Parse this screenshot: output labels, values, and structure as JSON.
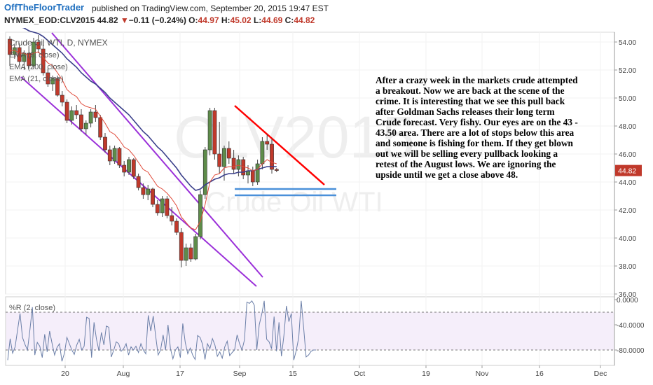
{
  "header": {
    "brand": "OffTheFloorTrader",
    "published": "published on TradingView.com, September 20, 2015 19:47 EST"
  },
  "quote": {
    "symbol": "NYMEX_EOD:CLV2015",
    "last": "44.82",
    "arrow": "▼",
    "change": "−0.11 (−0.24%)",
    "o_label": "O:",
    "o_val": "44.97",
    "h_label": "H:",
    "h_val": "45.02",
    "l_label": "L:",
    "l_val": "44.69",
    "c_label": "C:",
    "c_val": "44.82"
  },
  "watermark": {
    "symbol": "CLV2015",
    "name": "Crude Oil WTI"
  },
  "legend": {
    "title": "Crude Oil WTI, D, NYMEX",
    "ema8": "EMA (8, close)",
    "ema200": "EMA (200, close)",
    "ema21": "EMA (21, close)"
  },
  "annotation": "After  a crazy week in the markets crude attempted a breakout.  Now we are back at the scene of the crime.  It is interesting that we see this pull back after Goldman Sachs releases their long term Crude forecast.  Very fishy.  Our eyes are on the 43 - 43.50 area.  There are a lot of stops below this area and someone is fishing for them.  If they get blown out we will be selling every pullback looking a retest of the August lows.  We are ignoring the upside until we get a close above 48.",
  "colors": {
    "up": "#5e8c4a",
    "down": "#c0392b",
    "ema8": "#e04a3a",
    "ema21": "#3a3f8a",
    "channel": "#9b30d9",
    "trend": "#ff0000",
    "support": "#4a90d9",
    "wr": "#6b7fa8"
  },
  "chart_data": {
    "type": "candlestick",
    "title": "Crude Oil WTI, D, NYMEX",
    "price_axis": {
      "ylim": [
        36,
        55
      ],
      "ticks": [
        "54.00",
        "52.00",
        "50.00",
        "48.00",
        "46.00",
        "44.00",
        "42.00",
        "40.00",
        "38.00",
        "36.00"
      ],
      "last_price_label": "44.82"
    },
    "x_ticks": [
      "20",
      "Aug",
      "17",
      "Sep",
      "15",
      "Oct",
      "19",
      "Nov",
      "16",
      "Dec"
    ],
    "candles_ohlc": [
      [
        54.2,
        54.4,
        52.3,
        53.1
      ],
      [
        53.1,
        53.8,
        52.8,
        53.6
      ],
      [
        53.6,
        53.9,
        52.4,
        52.6
      ],
      [
        52.6,
        53.4,
        52.0,
        53.2
      ],
      [
        53.2,
        53.7,
        52.1,
        52.3
      ],
      [
        52.3,
        54.3,
        52.1,
        54.0
      ],
      [
        54.0,
        54.5,
        53.2,
        53.5
      ],
      [
        53.5,
        53.8,
        51.6,
        51.8
      ],
      [
        51.8,
        52.1,
        50.8,
        51.0
      ],
      [
        51.0,
        51.6,
        50.5,
        51.4
      ],
      [
        51.4,
        51.6,
        50.1,
        50.2
      ],
      [
        50.2,
        50.5,
        49.4,
        49.7
      ],
      [
        49.7,
        49.9,
        48.2,
        48.4
      ],
      [
        48.4,
        49.4,
        48.1,
        49.1
      ],
      [
        49.1,
        49.5,
        48.5,
        48.8
      ],
      [
        48.8,
        49.2,
        47.6,
        47.8
      ],
      [
        47.8,
        48.4,
        47.4,
        48.2
      ],
      [
        48.2,
        49.2,
        47.9,
        49.0
      ],
      [
        49.0,
        49.5,
        48.3,
        48.6
      ],
      [
        48.6,
        48.8,
        47.0,
        47.2
      ],
      [
        47.2,
        47.5,
        46.1,
        46.3
      ],
      [
        46.3,
        46.6,
        45.2,
        45.5
      ],
      [
        45.5,
        46.6,
        45.3,
        46.4
      ],
      [
        46.4,
        46.5,
        45.0,
        45.2
      ],
      [
        45.2,
        45.5,
        44.4,
        44.7
      ],
      [
        44.7,
        45.8,
        44.5,
        45.6
      ],
      [
        45.6,
        45.7,
        44.2,
        44.4
      ],
      [
        44.4,
        44.6,
        43.4,
        43.6
      ],
      [
        43.6,
        43.9,
        42.8,
        43.1
      ],
      [
        43.1,
        43.8,
        42.7,
        43.5
      ],
      [
        43.5,
        43.6,
        42.2,
        42.4
      ],
      [
        42.4,
        42.7,
        41.6,
        41.8
      ],
      [
        41.8,
        43.0,
        41.5,
        42.8
      ],
      [
        42.8,
        43.0,
        41.4,
        41.6
      ],
      [
        41.6,
        42.2,
        40.9,
        41.2
      ],
      [
        41.2,
        41.4,
        40.2,
        40.4
      ],
      [
        40.4,
        40.7,
        37.9,
        38.4
      ],
      [
        38.4,
        39.6,
        38.0,
        39.3
      ],
      [
        39.3,
        39.6,
        38.3,
        38.5
      ],
      [
        38.5,
        40.3,
        38.4,
        40.1
      ],
      [
        40.1,
        43.4,
        39.9,
        43.1
      ],
      [
        43.1,
        46.5,
        42.8,
        46.3
      ],
      [
        46.3,
        49.3,
        45.9,
        49.1
      ],
      [
        49.1,
        49.3,
        45.6,
        46.0
      ],
      [
        46.0,
        48.3,
        44.6,
        45.1
      ],
      [
        45.1,
        46.6,
        44.1,
        46.4
      ],
      [
        46.4,
        46.9,
        45.3,
        45.7
      ],
      [
        45.7,
        46.3,
        44.6,
        44.9
      ],
      [
        44.9,
        45.9,
        44.4,
        45.6
      ],
      [
        45.6,
        45.8,
        44.2,
        44.5
      ],
      [
        44.5,
        45.2,
        43.9,
        44.8
      ],
      [
        44.8,
        45.1,
        43.7,
        44.0
      ],
      [
        44.0,
        45.6,
        43.8,
        45.3
      ],
      [
        45.3,
        47.2,
        44.9,
        46.9
      ],
      [
        46.9,
        47.4,
        46.3,
        46.7
      ],
      [
        46.7,
        47.1,
        44.6,
        44.9
      ],
      [
        44.9,
        45.0,
        44.7,
        44.82
      ]
    ],
    "ema8": [
      53.4,
      53.4,
      53.2,
      53.2,
      53.0,
      53.2,
      53.3,
      52.9,
      52.5,
      52.3,
      51.8,
      51.3,
      50.6,
      50.3,
      50.1,
      49.6,
      49.4,
      49.3,
      49.2,
      48.7,
      48.2,
      47.6,
      47.4,
      47.0,
      46.5,
      46.3,
      45.9,
      45.4,
      44.9,
      44.7,
      44.2,
      43.7,
      43.5,
      43.2,
      42.8,
      42.3,
      41.5,
      41.1,
      40.7,
      40.6,
      41.2,
      42.4,
      44.0,
      44.5,
      44.6,
      45.0,
      45.1,
      45.1,
      45.2,
      45.1,
      45.0,
      44.8,
      44.9,
      45.3,
      45.6,
      45.4,
      45.3
    ],
    "ema21": [
      55.4,
      55.3,
      55.1,
      55.0,
      54.8,
      54.7,
      54.6,
      54.4,
      54.1,
      53.8,
      53.5,
      53.2,
      52.8,
      52.5,
      52.2,
      51.8,
      51.5,
      51.2,
      51.0,
      50.7,
      50.4,
      50.0,
      49.7,
      49.4,
      49.1,
      48.8,
      48.4,
      48.0,
      47.6,
      47.3,
      46.9,
      46.5,
      46.2,
      45.8,
      45.4,
      45.0,
      44.5,
      44.1,
      43.7,
      43.4,
      43.5,
      43.8,
      44.0,
      44.2,
      44.3,
      44.5,
      44.6,
      44.6,
      44.7,
      44.7,
      44.8,
      44.8,
      44.9,
      45.0,
      45.1,
      45.1,
      45.1
    ],
    "indicator": {
      "name": "%R (2, close)",
      "ylim": [
        -100,
        0
      ],
      "ticks": [
        "0.0000",
        "-40.0000",
        "-80.0000"
      ],
      "levels": [
        -20,
        -80
      ],
      "values": [
        -96,
        -62,
        -85,
        -75,
        -48,
        -22,
        -60,
        -71,
        -80,
        -48,
        -12,
        -88,
        -68,
        -74,
        -92,
        -55,
        -83,
        -50,
        -70,
        -88,
        -76,
        -70,
        -98,
        -85,
        -60,
        -70,
        -80,
        -87,
        -72,
        -63,
        -80,
        -74,
        -28,
        -30,
        -92,
        -36,
        -63,
        -81,
        -52,
        -72,
        -42,
        -44,
        -91,
        -80,
        -67,
        -70,
        -82,
        -78,
        -70,
        -88,
        -75,
        -80,
        -74,
        -84,
        -70,
        -80,
        -86,
        -25,
        -50,
        -26,
        -58,
        -88,
        -80,
        -56,
        -80,
        -40,
        -78,
        -94,
        -80,
        -75,
        -92,
        -38,
        -68,
        -86,
        -77,
        -88,
        -95,
        -57,
        -60,
        -71,
        -95,
        -70,
        -78,
        -62,
        -72,
        -90,
        -83,
        -93,
        -75,
        -66,
        -89,
        -84,
        -80,
        -56,
        -70,
        -80,
        -64,
        -4,
        -6,
        -2,
        -9,
        -80,
        -40,
        -23,
        -2,
        -63,
        -67,
        -78,
        -27,
        -82,
        -36,
        -90,
        -57,
        -10,
        -35,
        -22,
        -96,
        -81,
        -60,
        -2,
        -45,
        -91,
        -88,
        -82,
        -80,
        -80
      ]
    }
  }
}
